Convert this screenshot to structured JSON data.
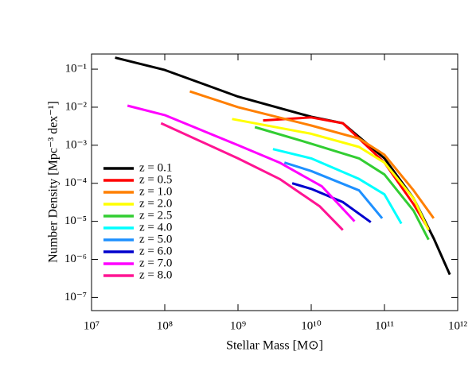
{
  "chart_data": {
    "type": "line",
    "x_label": "Stellar Mass [M⊙]",
    "y_label": "Number Density [Mpc⁻³ dex⁻¹]",
    "xlog": true,
    "ylog": true,
    "xlim": [
      10000000.0,
      1000000000000.0
    ],
    "ylim": [
      4.5e-08,
      0.25
    ],
    "xticks": [
      {
        "value": 10000000.0,
        "label": "10⁷"
      },
      {
        "value": 100000000.0,
        "label": "10⁸"
      },
      {
        "value": 1000000000.0,
        "label": "10⁹"
      },
      {
        "value": 10000000000.0,
        "label": "10¹⁰"
      },
      {
        "value": 100000000000.0,
        "label": "10¹¹"
      },
      {
        "value": 1000000000000.0,
        "label": "10¹²"
      }
    ],
    "yticks": [
      {
        "value": 1e-07,
        "label": "10⁻⁷"
      },
      {
        "value": 1e-06,
        "label": "10⁻⁶"
      },
      {
        "value": 1e-05,
        "label": "10⁻⁵"
      },
      {
        "value": 0.0001,
        "label": "10⁻⁴"
      },
      {
        "value": 0.001,
        "label": "10⁻³"
      },
      {
        "value": 0.01,
        "label": "10⁻²"
      },
      {
        "value": 0.1,
        "label": "10⁻¹"
      }
    ],
    "legend": "lower left",
    "series": [
      {
        "name": "z = 0.1",
        "color": "#000000",
        "x": [
          21000000.0,
          100000000.0,
          1000000000.0,
          10000000000.0,
          27000000000.0,
          100000000000.0,
          250000000000.0,
          470000000000.0,
          780000000000.0
        ],
        "values": [
          0.2,
          0.095,
          0.019,
          0.0056,
          0.0038,
          0.00045,
          4e-05,
          3.6e-06,
          4e-07
        ]
      },
      {
        "name": "z = 0.5",
        "color": "#ff0000",
        "x": [
          2200000000.0,
          10000000000.0,
          27000000000.0,
          100000000000.0,
          250000000000.0,
          400000000000.0
        ],
        "values": [
          0.0045,
          0.0054,
          0.0038,
          0.00035,
          2.8e-05,
          6.3e-06
        ]
      },
      {
        "name": "z = 1.0",
        "color": "#ff7f00",
        "x": [
          220000000.0,
          1000000000.0,
          10000000000.0,
          45000000000.0,
          100000000000.0,
          250000000000.0,
          470000000000.0
        ],
        "values": [
          0.026,
          0.01,
          0.0033,
          0.0015,
          0.00056,
          6.5e-05,
          1.2e-05
        ]
      },
      {
        "name": "z = 2.0",
        "color": "#ffff00",
        "x": [
          830000000.0,
          10000000000.0,
          45000000000.0,
          100000000000.0,
          250000000000.0,
          400000000000.0
        ],
        "values": [
          0.0049,
          0.002,
          0.0009,
          0.00035,
          4e-05,
          5.9e-06
        ]
      },
      {
        "name": "z = 2.5",
        "color": "#32cd32",
        "x": [
          1700000000.0,
          10000000000.0,
          45000000000.0,
          100000000000.0,
          250000000000.0,
          400000000000.0
        ],
        "values": [
          0.003,
          0.0011,
          0.00045,
          0.00017,
          1.9e-05,
          3.3e-06
        ]
      },
      {
        "name": "z = 4.0",
        "color": "#00ffff",
        "x": [
          3000000000.0,
          10000000000.0,
          45000000000.0,
          100000000000.0,
          170000000000.0
        ],
        "values": [
          0.00079,
          0.00045,
          0.00013,
          5.1e-05,
          8.7e-06
        ]
      },
      {
        "name": "z = 5.0",
        "color": "#1e90ff",
        "x": [
          4300000000.0,
          10000000000.0,
          45000000000.0,
          93000000000.0
        ],
        "values": [
          0.00035,
          0.00021,
          6.5e-05,
          1.2e-05
        ]
      },
      {
        "name": "z = 6.0",
        "color": "#0000cd",
        "x": [
          5500000000.0,
          10000000000.0,
          27000000000.0,
          65000000000.0
        ],
        "values": [
          0.0001,
          7.1e-05,
          3.2e-05,
          9.5e-06
        ]
      },
      {
        "name": "z = 7.0",
        "color": "#ff00ff",
        "x": [
          31000000.0,
          100000000.0,
          1000000000.0,
          3700000000.0,
          14000000000.0,
          39000000000.0
        ],
        "values": [
          0.011,
          0.0062,
          0.001,
          0.00035,
          8.3e-05,
          1e-05
        ]
      },
      {
        "name": "z = 8.0",
        "color": "#ff1493",
        "x": [
          89000000.0,
          1000000000.0,
          3700000000.0,
          13000000000.0,
          27000000000.0
        ],
        "values": [
          0.0038,
          0.00045,
          0.00013,
          2.5e-05,
          5.9e-06
        ]
      }
    ]
  }
}
